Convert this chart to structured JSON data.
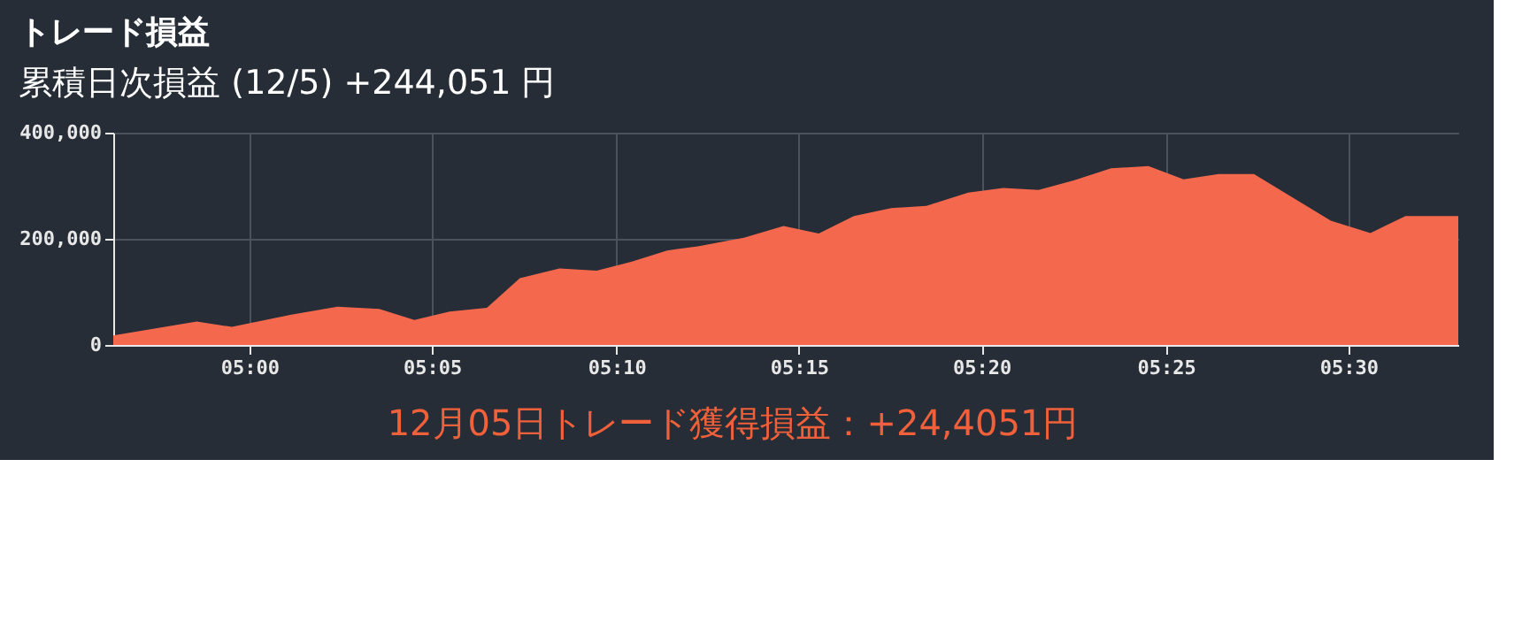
{
  "chart_data": {
    "type": "area",
    "title": "トレード損益",
    "subtitle": "累積日次損益 (12/5) +244,051 円",
    "annotations": [
      "12月05日トレード獲得損益：+24,4051円"
    ],
    "x": [
      4.938,
      4.976,
      4.992,
      5.019,
      5.04,
      5.059,
      5.075,
      5.091,
      5.108,
      5.123,
      5.141,
      5.158,
      5.174,
      5.19,
      5.204,
      5.225,
      5.243,
      5.259,
      5.275,
      5.292,
      5.308,
      5.327,
      5.343,
      5.359,
      5.375,
      5.392,
      5.409,
      5.425,
      5.441,
      5.457,
      5.492,
      5.51,
      5.526,
      5.55
    ],
    "values": [
      18000,
      44000,
      34000,
      57000,
      72000,
      68000,
      47000,
      63000,
      70000,
      126000,
      144000,
      140000,
      157000,
      178000,
      186000,
      202000,
      224000,
      210000,
      243000,
      258000,
      262000,
      287000,
      296000,
      292000,
      310000,
      333000,
      337000,
      312000,
      322000,
      322000,
      234000,
      211000,
      243000,
      243000
    ],
    "color": "#f4694e",
    "xlim": [
      4.938,
      5.55
    ],
    "ylim": [
      0,
      400000
    ],
    "xticks": [
      {
        "value": 5.0,
        "label": "05:00"
      },
      {
        "value": 5.083,
        "label": "05:05"
      },
      {
        "value": 5.167,
        "label": "05:10"
      },
      {
        "value": 5.25,
        "label": "05:15"
      },
      {
        "value": 5.333,
        "label": "05:20"
      },
      {
        "value": 5.417,
        "label": "05:25"
      },
      {
        "value": 5.5,
        "label": "05:30"
      }
    ],
    "yticks": [
      0,
      {
        "value": 200000,
        "label": "200,000"
      },
      {
        "value": 400000,
        "label": "400,000"
      }
    ],
    "grid": true
  }
}
